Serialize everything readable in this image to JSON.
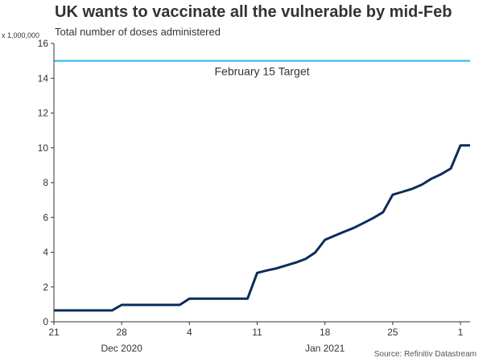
{
  "chart_data": {
    "type": "line",
    "title": "UK wants to vaccinate all the vulnerable by mid-Feb",
    "subtitle": "Total number of doses administered",
    "unit_label": "x 1,000,000",
    "source": "Source: Refinitiv Datastream",
    "xlabel": "",
    "ylabel": "",
    "ylim": [
      0,
      16
    ],
    "yticks": [
      0,
      2,
      4,
      6,
      8,
      10,
      12,
      14,
      16
    ],
    "xlim": [
      "2020-12-21",
      "2021-02-02"
    ],
    "xticks": [
      {
        "date": "2020-12-21",
        "label": "21"
      },
      {
        "date": "2020-12-28",
        "label": "28"
      },
      {
        "date": "2021-01-04",
        "label": "4"
      },
      {
        "date": "2021-01-11",
        "label": "11"
      },
      {
        "date": "2021-01-18",
        "label": "18"
      },
      {
        "date": "2021-01-25",
        "label": "25"
      },
      {
        "date": "2021-02-01",
        "label": "1"
      }
    ],
    "period_labels": [
      {
        "date": "2020-12-28",
        "label": "Dec 2020"
      },
      {
        "date": "2021-01-18",
        "label": "Jan 2021"
      }
    ],
    "grid": false,
    "series": [
      {
        "color": "#0b2d5b",
        "x": [
          "2020-12-21",
          "2020-12-27",
          "2020-12-28",
          "2021-01-03",
          "2021-01-04",
          "2021-01-10",
          "2021-01-11",
          "2021-01-12",
          "2021-01-13",
          "2021-01-14",
          "2021-01-15",
          "2021-01-16",
          "2021-01-17",
          "2021-01-18",
          "2021-01-19",
          "2021-01-20",
          "2021-01-21",
          "2021-01-22",
          "2021-01-23",
          "2021-01-24",
          "2021-01-25",
          "2021-01-26",
          "2021-01-27",
          "2021-01-28",
          "2021-01-29",
          "2021-01-30",
          "2021-01-31",
          "2021-02-01",
          "2021-02-02"
        ],
        "y": [
          0.65,
          0.65,
          0.97,
          0.97,
          1.33,
          1.33,
          2.81,
          2.95,
          3.07,
          3.24,
          3.41,
          3.61,
          3.98,
          4.71,
          4.95,
          5.18,
          5.4,
          5.68,
          5.97,
          6.3,
          7.3,
          7.47,
          7.64,
          7.88,
          8.22,
          8.48,
          8.81,
          10.14,
          10.14
        ]
      }
    ],
    "reference_lines": [
      {
        "y": 15,
        "label": "February 15 Target",
        "color": "#27b6ec"
      }
    ]
  }
}
